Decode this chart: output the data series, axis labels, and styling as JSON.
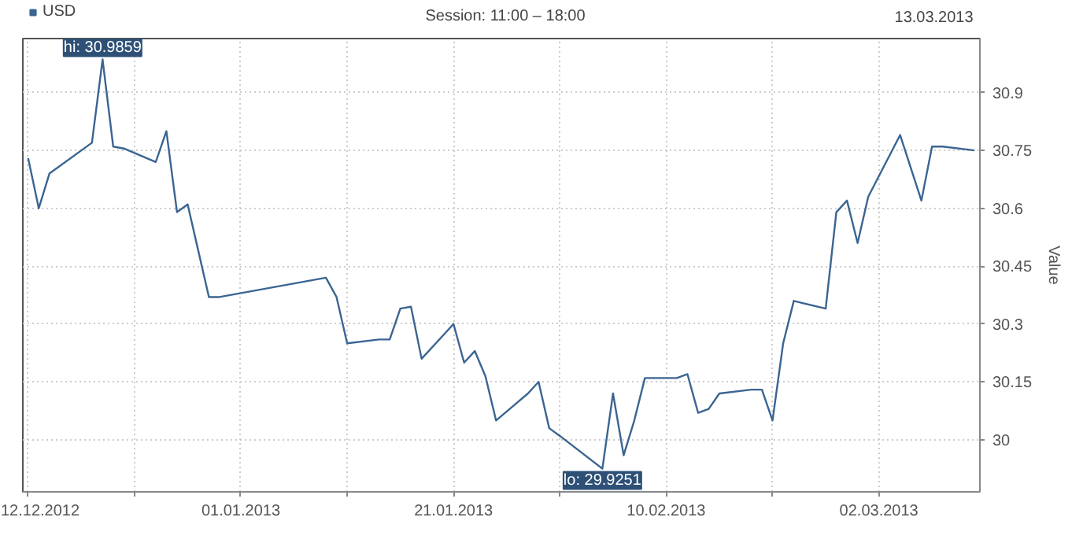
{
  "chart_data": {
    "type": "line",
    "title": "Session: 11:00 – 18:00",
    "ylabel": "Value",
    "x": [
      "2012-12-12",
      "2012-12-13",
      "2012-12-14",
      "2012-12-18",
      "2012-12-19",
      "2012-12-20",
      "2012-12-21",
      "2012-12-24",
      "2012-12-25",
      "2012-12-26",
      "2012-12-27",
      "2012-12-28",
      "2012-12-29",
      "2012-12-30",
      "2013-01-09",
      "2013-01-10",
      "2013-01-11",
      "2013-01-14",
      "2013-01-15",
      "2013-01-16",
      "2013-01-17",
      "2013-01-18",
      "2013-01-21",
      "2013-01-22",
      "2013-01-23",
      "2013-01-24",
      "2013-01-25",
      "2013-01-28",
      "2013-01-29",
      "2013-01-30",
      "2013-01-31",
      "2013-02-04",
      "2013-02-05",
      "2013-02-06",
      "2013-02-07",
      "2013-02-08",
      "2013-02-11",
      "2013-02-12",
      "2013-02-13",
      "2013-02-14",
      "2013-02-15",
      "2013-02-18",
      "2013-02-19",
      "2013-02-20",
      "2013-02-21",
      "2013-02-22",
      "2013-02-25",
      "2013-02-26",
      "2013-02-27",
      "2013-02-28",
      "2013-03-01",
      "2013-03-04",
      "2013-03-06",
      "2013-03-07",
      "2013-03-08",
      "2013-03-11"
    ],
    "series": [
      {
        "name": "USD",
        "color": "#3b6592",
        "values": [
          30.73,
          30.6,
          30.69,
          30.77,
          30.9859,
          30.76,
          30.755,
          30.72,
          30.8,
          30.59,
          30.61,
          30.49,
          30.37,
          30.37,
          30.42,
          30.37,
          30.25,
          30.26,
          30.26,
          30.34,
          30.345,
          30.21,
          30.3,
          30.2,
          30.23,
          30.165,
          30.05,
          30.12,
          30.15,
          30.03,
          30.01,
          29.9251,
          30.12,
          29.96,
          30.05,
          30.16,
          30.16,
          30.17,
          30.07,
          30.08,
          30.12,
          30.13,
          30.13,
          30.05,
          30.25,
          30.36,
          30.34,
          30.59,
          30.62,
          30.51,
          30.63,
          30.79,
          30.62,
          30.76,
          30.76,
          30.75
        ]
      }
    ],
    "xlim": [
      "2012-12-11T12:00",
      "2013-03-11T12:00"
    ],
    "xticks": [
      {
        "value": "2012-12-12",
        "label": "12.12.2012"
      },
      {
        "value": "2012-12-22",
        "label": null
      },
      {
        "value": "2013-01-01",
        "label": "01.01.2013"
      },
      {
        "value": "2013-01-11",
        "label": null
      },
      {
        "value": "2013-01-21",
        "label": "21.01.2013"
      },
      {
        "value": "2013-01-31",
        "label": null
      },
      {
        "value": "2013-02-10",
        "label": "10.02.2013"
      },
      {
        "value": "2013-02-20",
        "label": null
      },
      {
        "value": "2013-03-02",
        "label": "02.03.2013"
      }
    ],
    "ylim": [
      29.865,
      31.04
    ],
    "yticks": [
      30,
      30.15,
      30.3,
      30.45,
      30.6,
      30.75,
      30.9
    ],
    "grid": true,
    "legend": "top left",
    "line_style": "solid",
    "marker": "none",
    "annotations": [
      "13.03.2013",
      {
        "text": "hi: 30.9859",
        "x": "2012-12-19",
        "y": 30.9859
      },
      {
        "text": "lo: 29.9251",
        "x": "2013-02-04",
        "y": 29.9251
      }
    ]
  }
}
